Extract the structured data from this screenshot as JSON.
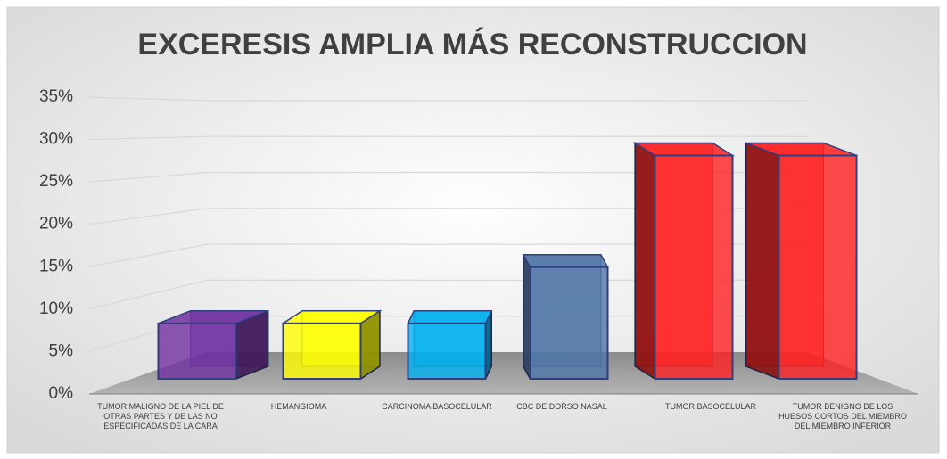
{
  "chart_data": {
    "type": "bar3d",
    "title": "EXCERESIS AMPLIA MÁS RECONSTRUCCION",
    "categories": [
      "TUMOR MALIGNO DE LA PIEL DE OTRAS PARTES Y DE LAS NO ESPECIFICADAS DE LA CARA",
      "HEMANGIOMA",
      "CARCINOMA BASOCELULAR",
      "CBC DE DORSO NASAL",
      "TUMOR BASOCELULAR",
      "TUMOR BENIGNO DE LOS HUESOS CORTOS DEL MIEMBRO DEL MIEMBRO INFERIOR"
    ],
    "values": [
      7.1,
      7.1,
      7.1,
      14.3,
      28.6,
      28.6
    ],
    "colors": [
      "#7030a0",
      "#ffff00",
      "#00b0f0",
      "#4f75a6",
      "#ff1f1f",
      "#ff1f1f"
    ],
    "ylim": [
      0,
      35
    ],
    "yticks": [
      {
        "value": 0,
        "label": "0%"
      },
      {
        "value": 5,
        "label": "5%"
      },
      {
        "value": 10,
        "label": "10%"
      },
      {
        "value": 15,
        "label": "15%"
      },
      {
        "value": 20,
        "label": "20%"
      },
      {
        "value": 25,
        "label": "25%"
      },
      {
        "value": 30,
        "label": "30%"
      },
      {
        "value": 35,
        "label": "35%"
      }
    ],
    "grid": true
  }
}
